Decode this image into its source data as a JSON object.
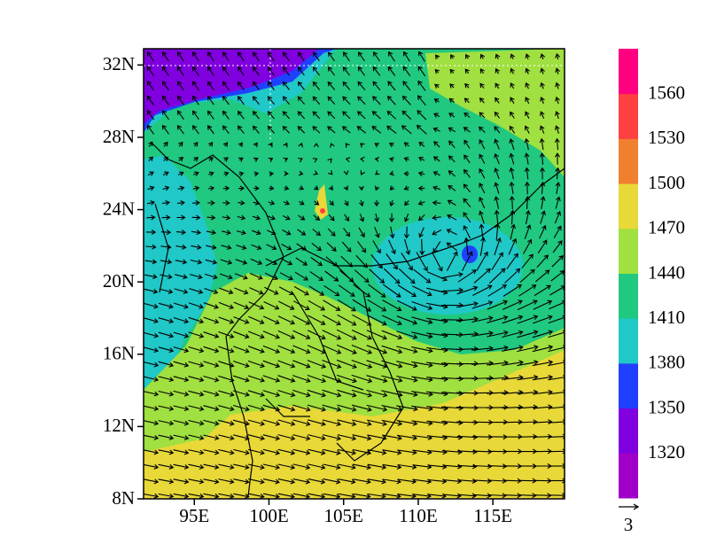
{
  "map": {
    "lonlim": [
      91.6,
      119.8
    ],
    "latlim": [
      8,
      32.9
    ],
    "lat_ticks": [
      {
        "value": 8,
        "label": "8N"
      },
      {
        "value": 12,
        "label": "12N"
      },
      {
        "value": 16,
        "label": "16N"
      },
      {
        "value": 20,
        "label": "20N"
      },
      {
        "value": 24,
        "label": "24N"
      },
      {
        "value": 28,
        "label": "28N"
      },
      {
        "value": 32,
        "label": "32N"
      }
    ],
    "lon_ticks": [
      {
        "value": 95,
        "label": "95E"
      },
      {
        "value": 100,
        "label": "100E"
      },
      {
        "value": 105,
        "label": "105E"
      },
      {
        "value": 110,
        "label": "110E"
      },
      {
        "value": 115,
        "label": "115E"
      }
    ]
  },
  "colorbar": {
    "levels": [
      1320,
      1350,
      1380,
      1410,
      1440,
      1470,
      1500,
      1530,
      1560
    ],
    "colors": [
      "#a000c8",
      "#8000e0",
      "#2040ff",
      "#20c8c8",
      "#20c880",
      "#a0e040",
      "#e8d838",
      "#f08030",
      "#ff4040",
      "#ff0080"
    ]
  },
  "reference_vector": 3
}
